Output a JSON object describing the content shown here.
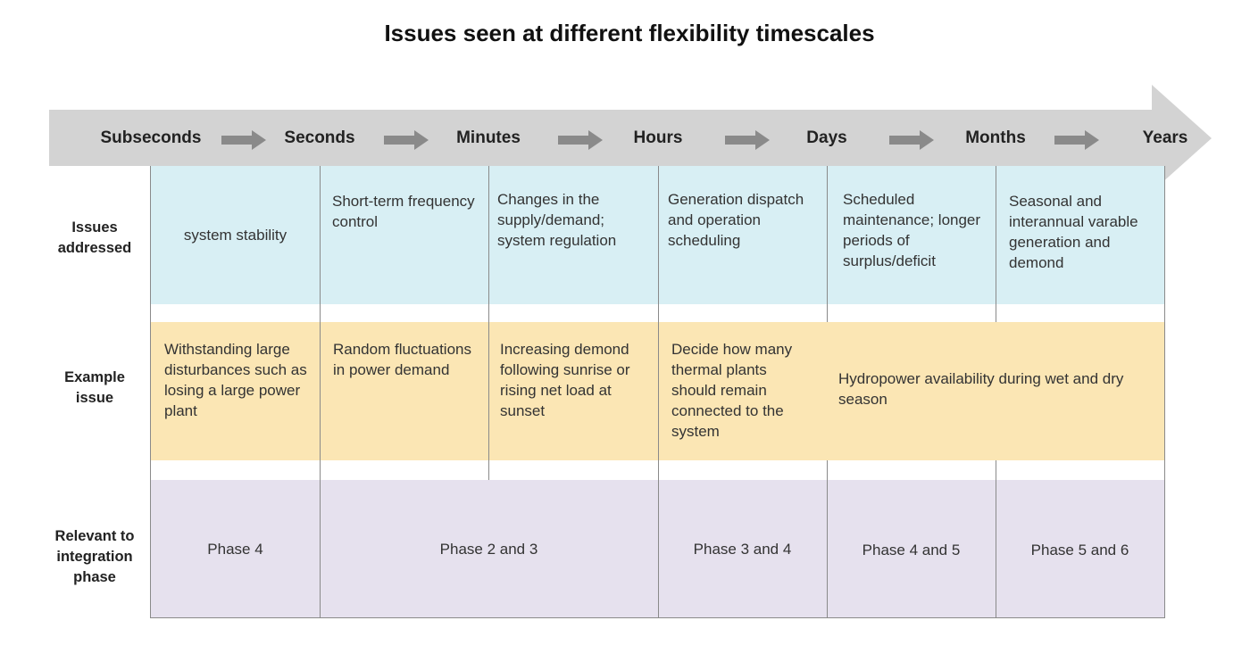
{
  "title": "Issues seen at different flexibility timescales",
  "timescales": [
    "Subseconds",
    "Seconds",
    "Minutes",
    "Hours",
    "Days",
    "Months",
    "Years"
  ],
  "row_headers": {
    "issues": "Issues addressed",
    "example": "Example issue",
    "phase": "Relevant to integration phase"
  },
  "issues": [
    "system stability",
    "Short-term frequency control",
    "Changes in the supply/demand; system regulation",
    "Generation dispatch and operation scheduling",
    "Scheduled maintenance; longer periods of surplus/deficit",
    "Seasonal and interannual varable generation and demond"
  ],
  "examples": [
    "Withstanding large disturbances such as losing a large power plant",
    "Random fluctuations in power demand",
    "Increasing demond following sunrise or rising net load at sunset",
    "Decide how many thermal plants should remain connected to the system",
    "Hydropower availability during wet and dry season"
  ],
  "phases": [
    "Phase 4",
    "Phase 2 and 3",
    "Phase 3 and 4",
    "Phase 4 and 5",
    "Phase 5 and 6"
  ],
  "colors": {
    "arrow": "#d3d3d3",
    "small_arrow": "#8a8a8a",
    "issues_bg": "#d8eff4",
    "example_bg": "#fbe6b4",
    "phase_bg": "#e6e1ee",
    "grid": "#8a8a8a"
  }
}
